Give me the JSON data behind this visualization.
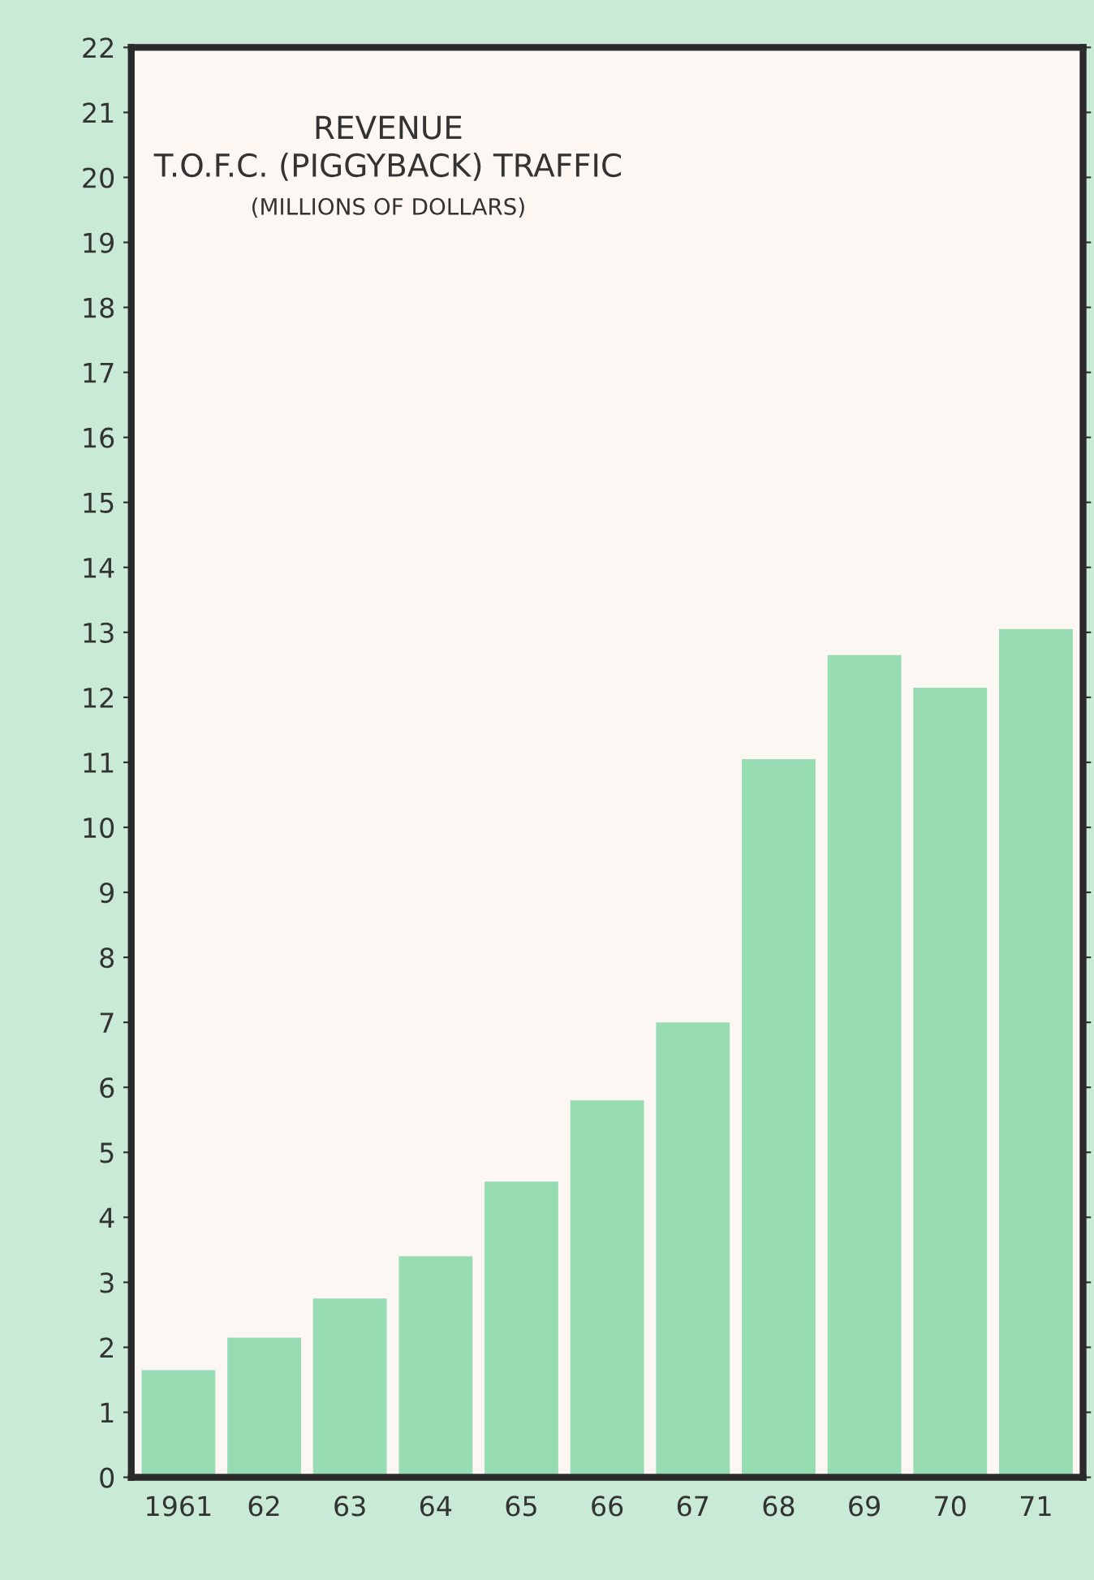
{
  "chart_data": {
    "type": "bar",
    "title": "REVENUE\nT.O.F.C. (PIGGYBACK) TRAFFIC",
    "subtitle": "(MILLIONS OF DOLLARS)",
    "categories": [
      "1961",
      "62",
      "63",
      "64",
      "65",
      "66",
      "67",
      "68",
      "69",
      "70",
      "71"
    ],
    "values": [
      1.65,
      2.15,
      2.75,
      3.4,
      4.55,
      5.8,
      7.0,
      11.05,
      12.65,
      12.15,
      13.05
    ],
    "color": "#98dcb4",
    "ylim": [
      0,
      22
    ],
    "yticks": [
      0,
      1,
      2,
      3,
      4,
      5,
      6,
      7,
      8,
      9,
      10,
      11,
      12,
      13,
      14,
      15,
      16,
      17,
      18,
      19,
      20,
      21,
      22
    ],
    "grid": false,
    "legend": false
  }
}
